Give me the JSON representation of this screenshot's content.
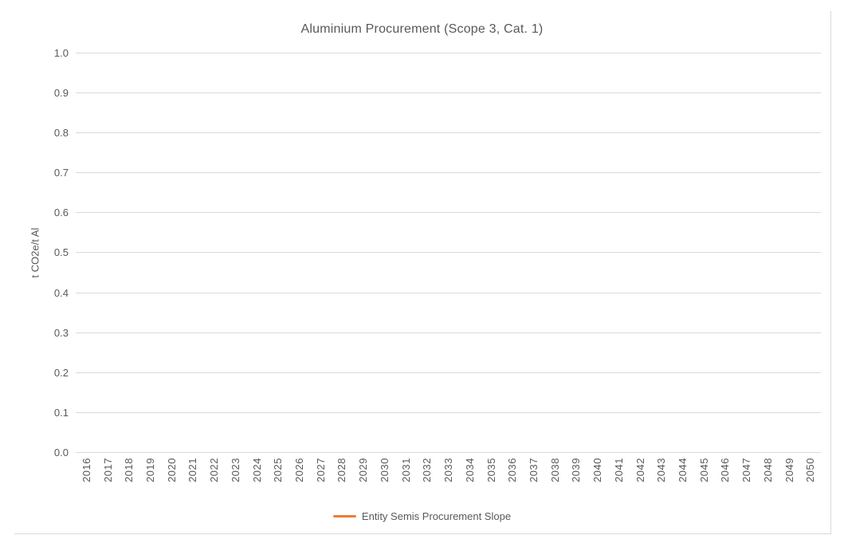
{
  "chart": {
    "title": "Aluminium Procurement (Scope 3, Cat. 1)",
    "y_axis": {
      "title": "t CO2e/t Al",
      "tick_labels": [
        "1.0",
        "0.9",
        "0.8",
        "0.7",
        "0.6",
        "0.5",
        "0.4",
        "0.3",
        "0.2",
        "0.1",
        "0.0"
      ]
    },
    "x_axis": {
      "tick_labels": [
        "2016",
        "2017",
        "2018",
        "2019",
        "2020",
        "2021",
        "2022",
        "2023",
        "2024",
        "2025",
        "2026",
        "2027",
        "2028",
        "2029",
        "2030",
        "2031",
        "2032",
        "2033",
        "2034",
        "2035",
        "2036",
        "2037",
        "2038",
        "2039",
        "2040",
        "2041",
        "2042",
        "2043",
        "2044",
        "2045",
        "2046",
        "2047",
        "2048",
        "2049",
        "2050"
      ]
    },
    "legend": {
      "label": "Entity Semis Procurement Slope",
      "marker_color": "#ED7D31"
    },
    "colors": {
      "gridline": "#D9D9D9",
      "axis_text": "#595959",
      "title_text": "#595959",
      "frame_border": "#D9D9D9",
      "accent_orange": "#ED7D31"
    }
  },
  "chart_data": {
    "type": "line",
    "title": "Aluminium Procurement (Scope 3, Cat. 1)",
    "xlabel": "",
    "ylabel": "t CO2e/t Al",
    "ylim": [
      0.0,
      1.0
    ],
    "ytick_interval": 0.1,
    "categories": [
      2016,
      2017,
      2018,
      2019,
      2020,
      2021,
      2022,
      2023,
      2024,
      2025,
      2026,
      2027,
      2028,
      2029,
      2030,
      2031,
      2032,
      2033,
      2034,
      2035,
      2036,
      2037,
      2038,
      2039,
      2040,
      2041,
      2042,
      2043,
      2044,
      2045,
      2046,
      2047,
      2048,
      2049,
      2050
    ],
    "series": [
      {
        "name": "Entity Semis Procurement Slope",
        "color": "#ED7D31",
        "values": []
      }
    ],
    "grid": "horizontal",
    "legend_position": "bottom"
  }
}
